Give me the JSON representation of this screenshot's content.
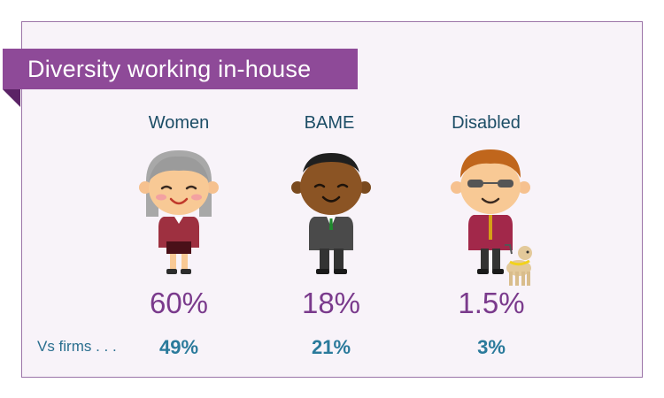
{
  "title": "Diversity working in-house",
  "categories": [
    {
      "label": "Women",
      "in_house": "60%",
      "vs_firms": "49%"
    },
    {
      "label": "BAME",
      "in_house": "18%",
      "vs_firms": "21%"
    },
    {
      "label": "Disabled",
      "in_house": "1.5%",
      "vs_firms": "3%"
    }
  ],
  "vs_label": "Vs firms . . .",
  "colors": {
    "banner": "#8e4a98",
    "percent": "#7a3a8c",
    "vs": "#2a7a9b",
    "label": "#1c4d66"
  },
  "icons": [
    "woman-figure-icon",
    "bame-man-figure-icon",
    "disabled-man-with-guide-dog-icon"
  ]
}
